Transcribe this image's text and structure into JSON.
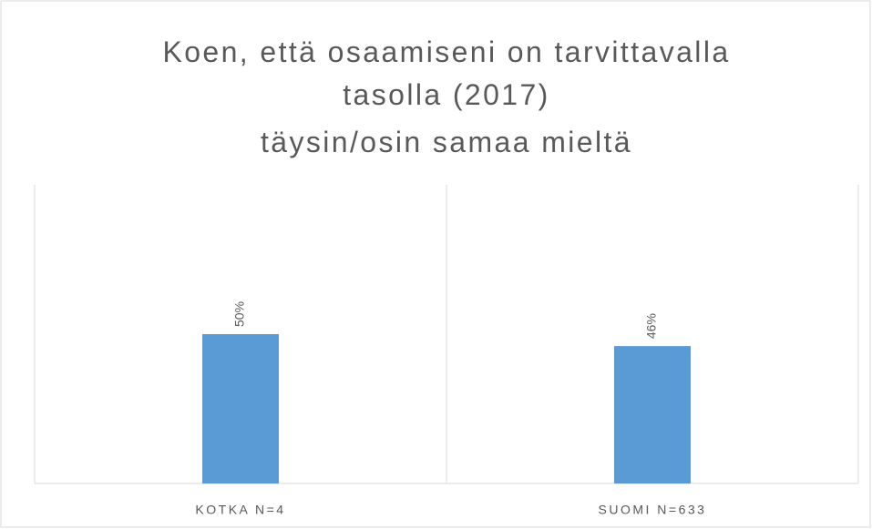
{
  "chart_data": {
    "type": "bar",
    "title": "Koen, että osaamiseni on tarvittavalla tasolla (2017)",
    "subtitle": "täysin/osin samaa mieltä",
    "categories": [
      "KOTKA N=4",
      "SUOMI N=633"
    ],
    "values": [
      50,
      46
    ],
    "value_labels": [
      "50%",
      "46%"
    ],
    "color": "#5b9bd5",
    "ylim": [
      0,
      100
    ]
  }
}
